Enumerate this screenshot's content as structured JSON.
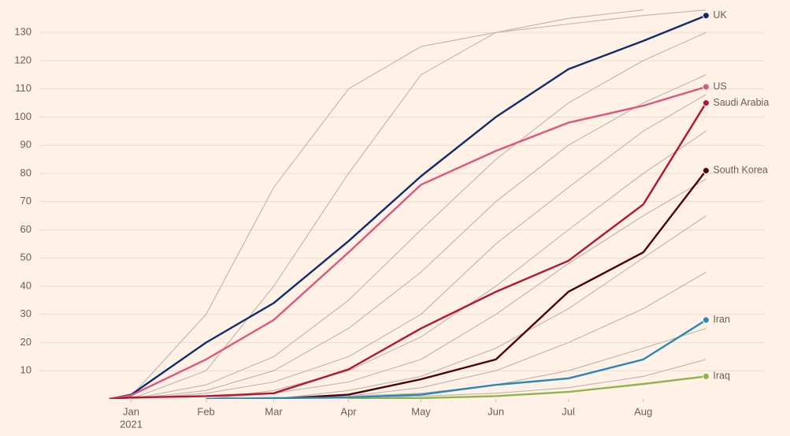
{
  "chart_data": {
    "type": "line",
    "x": [
      -9,
      0,
      31,
      59,
      90,
      120,
      151,
      181,
      212,
      238
    ],
    "xlim": [
      -38,
      262
    ],
    "xticks": [
      {
        "value": 0,
        "label": "Jan"
      },
      {
        "value": 31,
        "label": "Feb"
      },
      {
        "value": 59,
        "label": "Mar"
      },
      {
        "value": 90,
        "label": "Apr"
      },
      {
        "value": 120,
        "label": "May"
      },
      {
        "value": 151,
        "label": "Jun"
      },
      {
        "value": 181,
        "label": "Jul"
      },
      {
        "value": 212,
        "label": "Aug"
      }
    ],
    "x_sublabel": "2021",
    "ylim": [
      0,
      139
    ],
    "yticks": [
      10,
      20,
      30,
      40,
      50,
      60,
      70,
      80,
      90,
      100,
      110,
      120,
      130
    ],
    "grid": true,
    "series": [
      {
        "color": "#bfb3ab",
        "values": [
          0,
          1,
          30,
          75,
          110,
          125,
          130,
          133,
          136,
          138
        ]
      },
      {
        "color": "#bfb3ab",
        "values": [
          null,
          0,
          10,
          40,
          80,
          115,
          130,
          135,
          138,
          null
        ]
      },
      {
        "color": "#bfb3ab",
        "values": [
          null,
          0,
          5,
          15,
          35,
          60,
          85,
          105,
          120,
          130
        ]
      },
      {
        "color": "#bfb3ab",
        "values": [
          null,
          0,
          3,
          10,
          25,
          45,
          70,
          90,
          105,
          115
        ]
      },
      {
        "color": "#bfb3ab",
        "values": [
          null,
          0,
          2,
          6,
          15,
          30,
          55,
          75,
          95,
          108
        ]
      },
      {
        "color": "#bfb3ab",
        "values": [
          null,
          null,
          0,
          3,
          10,
          22,
          40,
          60,
          80,
          95
        ]
      },
      {
        "color": "#bfb3ab",
        "values": [
          null,
          null,
          0,
          2,
          6,
          14,
          30,
          48,
          65,
          78
        ]
      },
      {
        "color": "#bfb3ab",
        "values": [
          null,
          null,
          null,
          0,
          3,
          8,
          18,
          32,
          50,
          65
        ]
      },
      {
        "color": "#bfb3ab",
        "values": [
          null,
          null,
          null,
          0,
          1,
          4,
          10,
          20,
          32,
          45
        ]
      },
      {
        "color": "#bfb3ab",
        "values": [
          null,
          null,
          null,
          0,
          1,
          2,
          5,
          10,
          18,
          25
        ]
      },
      {
        "color": "#bfb3ab",
        "values": [
          null,
          null,
          null,
          null,
          0,
          1,
          2,
          4,
          8,
          14
        ]
      },
      {
        "name": "UK",
        "color": "#0f2d6b",
        "values": [
          0,
          1.5,
          20,
          34,
          56,
          79,
          100,
          117,
          127,
          136
        ]
      },
      {
        "name": "US",
        "color": "#e0557d",
        "values": [
          0,
          1.3,
          14,
          28,
          52,
          76,
          88,
          98,
          104,
          110.7
        ]
      },
      {
        "name": "Saudi Arabia",
        "color": "#b5162b",
        "values": [
          0,
          0.5,
          1,
          2,
          10.5,
          25,
          38,
          49,
          69,
          105
        ]
      },
      {
        "name": "South Korea",
        "color": "#4d0010",
        "values": [
          null,
          null,
          null,
          0,
          1.5,
          7,
          14,
          38,
          52,
          81
        ]
      },
      {
        "name": "Iran",
        "color": "#2a87b8",
        "values": [
          null,
          null,
          0,
          0.3,
          0.5,
          1.5,
          5,
          7.3,
          14,
          28
        ]
      },
      {
        "name": "Iraq",
        "color": "#8db54a",
        "values": [
          null,
          null,
          null,
          null,
          0,
          0.3,
          1,
          2.5,
          5.3,
          8
        ]
      }
    ]
  }
}
